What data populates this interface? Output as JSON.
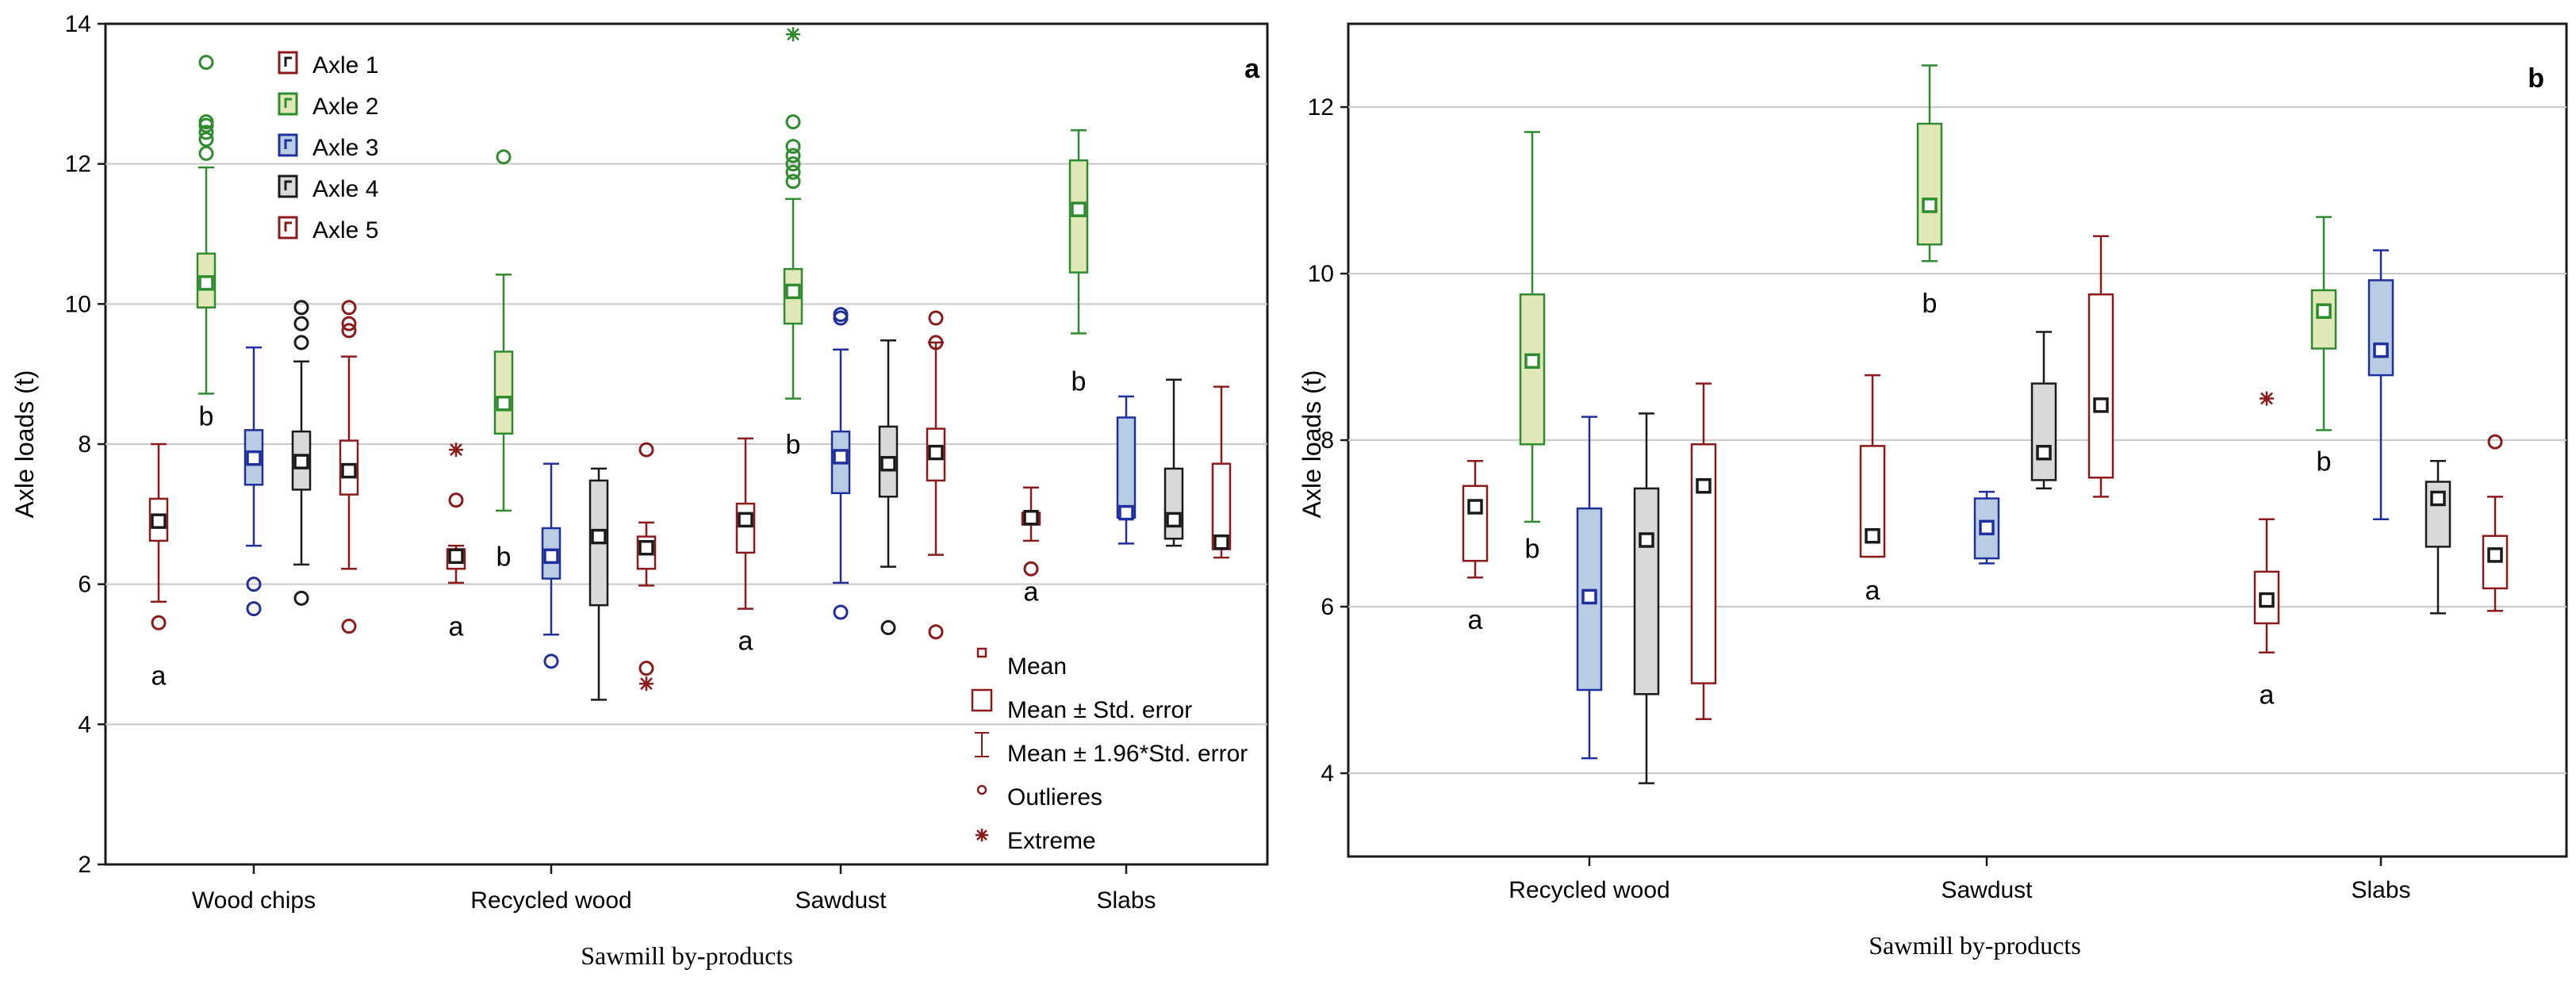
{
  "colors": {
    "axle1": {
      "stroke": "#8b1a1a",
      "fill": "#ffffff"
    },
    "axle2": {
      "stroke": "#2e8b2e",
      "fill": "#e0e8b8"
    },
    "axle3": {
      "stroke": "#1f2f9c",
      "fill": "#b8cce4"
    },
    "axle4": {
      "stroke": "#1a1a1a",
      "fill": "#d9d9d9"
    },
    "axle5": {
      "stroke": "#8b1a1a",
      "fill": "#ffffff"
    },
    "grid": "#c8c8c8"
  },
  "chart_data": [
    {
      "type": "box",
      "panel_label": "a",
      "ylabel": "Axle loads (t)",
      "xlabel": "Sawmill by-products",
      "ylim": [
        2,
        14
      ],
      "yticks": [
        2,
        4,
        6,
        8,
        10,
        12,
        14
      ],
      "grid": true,
      "categories": [
        "Wood chips",
        "Recycled wood",
        "Sawdust",
        "Slabs"
      ],
      "series_legend": [
        {
          "key": "axle1",
          "label": "Axle 1"
        },
        {
          "key": "axle2",
          "label": "Axle 2"
        },
        {
          "key": "axle3",
          "label": "Axle 3"
        },
        {
          "key": "axle4",
          "label": "Axle 4"
        },
        {
          "key": "axle5",
          "label": "Axle 5"
        }
      ],
      "stat_legend": [
        "Mean",
        "Mean ± Std. error",
        "Mean ± 1.96*Std. error",
        "Outlieres",
        "Extreme"
      ],
      "groups": [
        {
          "category": "Wood chips",
          "boxes": [
            {
              "axle": "axle1",
              "mean": 6.9,
              "se_lo": 6.62,
              "se_hi": 7.22,
              "wl": 5.75,
              "wh": 8.0,
              "outliers": [
                5.45
              ],
              "extremes": [],
              "letter": "a",
              "letter_y": 4.7
            },
            {
              "axle": "axle2",
              "mean": 10.3,
              "se_lo": 9.95,
              "se_hi": 10.72,
              "wl": 8.72,
              "wh": 11.95,
              "outliers": [
                12.15,
                12.35,
                12.45,
                12.55,
                12.6,
                13.45
              ],
              "extremes": [],
              "letter": "b",
              "letter_y": 8.4
            },
            {
              "axle": "axle3",
              "mean": 7.8,
              "se_lo": 7.42,
              "se_hi": 8.2,
              "wl": 6.55,
              "wh": 9.38,
              "outliers": [
                6.0,
                5.65
              ],
              "extremes": [],
              "letter": "",
              "letter_y": 0
            },
            {
              "axle": "axle4",
              "mean": 7.75,
              "se_lo": 7.35,
              "se_hi": 8.18,
              "wl": 6.28,
              "wh": 9.18,
              "outliers": [
                9.45,
                9.72,
                9.95,
                5.8
              ],
              "extremes": [],
              "letter": "",
              "letter_y": 0
            },
            {
              "axle": "axle5",
              "mean": 7.62,
              "se_lo": 7.28,
              "se_hi": 8.05,
              "wl": 6.22,
              "wh": 9.25,
              "outliers": [
                9.62,
                9.72,
                9.95,
                5.4
              ],
              "extremes": [],
              "letter": "",
              "letter_y": 0
            }
          ]
        },
        {
          "category": "Recycled wood",
          "boxes": [
            {
              "axle": "axle1",
              "mean": 6.4,
              "se_lo": 6.22,
              "se_hi": 6.5,
              "wl": 6.02,
              "wh": 6.55,
              "outliers": [
                7.2
              ],
              "extremes": [
                7.92
              ],
              "letter": "a",
              "letter_y": 5.4
            },
            {
              "axle": "axle2",
              "mean": 8.58,
              "se_lo": 8.15,
              "se_hi": 9.32,
              "wl": 7.05,
              "wh": 10.42,
              "outliers": [
                12.1
              ],
              "extremes": [],
              "letter": "b",
              "letter_y": 6.4
            },
            {
              "axle": "axle3",
              "mean": 6.4,
              "se_lo": 6.08,
              "se_hi": 6.8,
              "wl": 5.28,
              "wh": 7.72,
              "outliers": [
                4.9
              ],
              "extremes": [],
              "letter": "",
              "letter_y": 0
            },
            {
              "axle": "axle4",
              "mean": 6.68,
              "se_lo": 5.7,
              "se_hi": 7.48,
              "wl": 4.35,
              "wh": 7.65,
              "outliers": [],
              "extremes": [],
              "letter": "",
              "letter_y": 0
            },
            {
              "axle": "axle5",
              "mean": 6.52,
              "se_lo": 6.22,
              "se_hi": 6.68,
              "wl": 5.98,
              "wh": 6.88,
              "outliers": [
                7.92,
                4.8
              ],
              "extremes": [
                4.58
              ],
              "letter": "",
              "letter_y": 0
            }
          ]
        },
        {
          "category": "Sawdust",
          "boxes": [
            {
              "axle": "axle1",
              "mean": 6.92,
              "se_lo": 6.45,
              "se_hi": 7.15,
              "wl": 5.65,
              "wh": 8.08,
              "outliers": [],
              "extremes": [],
              "letter": "a",
              "letter_y": 5.2
            },
            {
              "axle": "axle2",
              "mean": 10.18,
              "se_lo": 9.72,
              "se_hi": 10.5,
              "wl": 8.65,
              "wh": 11.5,
              "outliers": [
                11.75,
                11.88,
                12.0,
                12.12,
                12.25,
                12.6
              ],
              "extremes": [
                13.85
              ],
              "letter": "b",
              "letter_y": 8.0
            },
            {
              "axle": "axle3",
              "mean": 7.82,
              "se_lo": 7.3,
              "se_hi": 8.18,
              "wl": 6.02,
              "wh": 9.35,
              "outliers": [
                9.8,
                9.85,
                5.6
              ],
              "extremes": [],
              "letter": "",
              "letter_y": 0
            },
            {
              "axle": "axle4",
              "mean": 7.72,
              "se_lo": 7.25,
              "se_hi": 8.25,
              "wl": 6.25,
              "wh": 9.48,
              "outliers": [
                5.38
              ],
              "extremes": [],
              "letter": "",
              "letter_y": 0
            },
            {
              "axle": "axle5",
              "mean": 7.88,
              "se_lo": 7.48,
              "se_hi": 8.22,
              "wl": 6.42,
              "wh": 9.45,
              "outliers": [
                9.8,
                9.45,
                5.32
              ],
              "extremes": [],
              "letter": "",
              "letter_y": 0
            }
          ]
        },
        {
          "category": "Slabs",
          "boxes": [
            {
              "axle": "axle1",
              "mean": 6.95,
              "se_lo": 6.85,
              "se_hi": 7.02,
              "wl": 6.62,
              "wh": 7.38,
              "outliers": [
                6.22
              ],
              "extremes": [],
              "letter": "a",
              "letter_y": 5.9
            },
            {
              "axle": "axle2",
              "mean": 11.35,
              "se_lo": 10.45,
              "se_hi": 12.05,
              "wl": 9.58,
              "wh": 12.48,
              "outliers": [],
              "extremes": [],
              "letter": "b",
              "letter_y": 8.9
            },
            {
              "axle": "axle3",
              "mean": 7.02,
              "se_lo": 6.95,
              "se_hi": 8.38,
              "wl": 6.58,
              "wh": 8.68,
              "outliers": [],
              "extremes": [],
              "letter": "",
              "letter_y": 0
            },
            {
              "axle": "axle4",
              "mean": 6.92,
              "se_lo": 6.65,
              "se_hi": 7.65,
              "wl": 6.55,
              "wh": 8.92,
              "outliers": [],
              "extremes": [],
              "letter": "",
              "letter_y": 0
            },
            {
              "axle": "axle5",
              "mean": 6.6,
              "se_lo": 6.5,
              "se_hi": 7.72,
              "wl": 6.38,
              "wh": 8.82,
              "outliers": [],
              "extremes": [],
              "letter": "",
              "letter_y": 0
            }
          ]
        }
      ]
    },
    {
      "type": "box",
      "panel_label": "b",
      "ylabel": "Axle loads (t)",
      "xlabel": "Sawmill by-products",
      "ylim": [
        3,
        13
      ],
      "yticks": [
        4,
        6,
        8,
        10,
        12
      ],
      "grid": true,
      "categories": [
        "Recycled wood",
        "Sawdust",
        "Slabs"
      ],
      "groups": [
        {
          "category": "Recycled wood",
          "boxes": [
            {
              "axle": "axle1",
              "mean": 7.2,
              "se_lo": 6.55,
              "se_hi": 7.45,
              "wl": 6.35,
              "wh": 7.75,
              "outliers": [],
              "extremes": [],
              "letter": "a",
              "letter_y": 5.85
            },
            {
              "axle": "axle2",
              "mean": 8.95,
              "se_lo": 7.95,
              "se_hi": 9.75,
              "wl": 7.02,
              "wh": 11.7,
              "outliers": [],
              "extremes": [],
              "letter": "b",
              "letter_y": 6.7
            },
            {
              "axle": "axle3",
              "mean": 6.12,
              "se_lo": 5.0,
              "se_hi": 7.18,
              "wl": 4.18,
              "wh": 8.28,
              "outliers": [],
              "extremes": [],
              "letter": "",
              "letter_y": 0
            },
            {
              "axle": "axle4",
              "mean": 6.8,
              "se_lo": 4.95,
              "se_hi": 7.42,
              "wl": 3.88,
              "wh": 8.32,
              "outliers": [],
              "extremes": [],
              "letter": "",
              "letter_y": 0
            },
            {
              "axle": "axle5",
              "mean": 7.45,
              "se_lo": 5.08,
              "se_hi": 7.95,
              "wl": 4.65,
              "wh": 8.68,
              "outliers": [],
              "extremes": [],
              "letter": "",
              "letter_y": 0
            }
          ]
        },
        {
          "category": "Sawdust",
          "boxes": [
            {
              "axle": "axle1",
              "mean": 6.85,
              "se_lo": 6.6,
              "se_hi": 7.93,
              "wl": 6.6,
              "wh": 8.78,
              "outliers": [],
              "extremes": [],
              "letter": "a",
              "letter_y": 6.2
            },
            {
              "axle": "axle2",
              "mean": 10.82,
              "se_lo": 10.35,
              "se_hi": 11.8,
              "wl": 10.15,
              "wh": 12.5,
              "outliers": [],
              "extremes": [],
              "letter": "b",
              "letter_y": 9.65
            },
            {
              "axle": "axle3",
              "mean": 6.95,
              "se_lo": 6.58,
              "se_hi": 7.3,
              "wl": 6.52,
              "wh": 7.38,
              "outliers": [],
              "extremes": [],
              "letter": "",
              "letter_y": 0
            },
            {
              "axle": "axle4",
              "mean": 7.85,
              "se_lo": 7.52,
              "se_hi": 8.68,
              "wl": 7.42,
              "wh": 9.3,
              "outliers": [],
              "extremes": [],
              "letter": "",
              "letter_y": 0
            },
            {
              "axle": "axle5",
              "mean": 8.42,
              "se_lo": 7.55,
              "se_hi": 9.75,
              "wl": 7.32,
              "wh": 10.45,
              "outliers": [],
              "extremes": [],
              "letter": "",
              "letter_y": 0
            }
          ]
        },
        {
          "category": "Slabs",
          "boxes": [
            {
              "axle": "axle1",
              "mean": 6.08,
              "se_lo": 5.8,
              "se_hi": 6.42,
              "wl": 5.45,
              "wh": 7.05,
              "outliers": [],
              "extremes": [
                8.5
              ],
              "letter": "a",
              "letter_y": 4.95
            },
            {
              "axle": "axle2",
              "mean": 9.55,
              "se_lo": 9.1,
              "se_hi": 9.8,
              "wl": 8.12,
              "wh": 10.68,
              "outliers": [],
              "extremes": [],
              "letter": "b",
              "letter_y": 7.75
            },
            {
              "axle": "axle3",
              "mean": 9.08,
              "se_lo": 8.78,
              "se_hi": 9.92,
              "wl": 7.05,
              "wh": 10.28,
              "outliers": [],
              "extremes": [],
              "letter": "",
              "letter_y": 0
            },
            {
              "axle": "axle4",
              "mean": 7.3,
              "se_lo": 6.72,
              "se_hi": 7.5,
              "wl": 5.92,
              "wh": 7.75,
              "outliers": [],
              "extremes": [],
              "letter": "",
              "letter_y": 0
            },
            {
              "axle": "axle5",
              "mean": 6.62,
              "se_lo": 6.22,
              "se_hi": 6.85,
              "wl": 5.95,
              "wh": 7.32,
              "outliers": [
                7.98
              ],
              "extremes": [],
              "letter": "",
              "letter_y": 0
            }
          ]
        }
      ]
    }
  ]
}
